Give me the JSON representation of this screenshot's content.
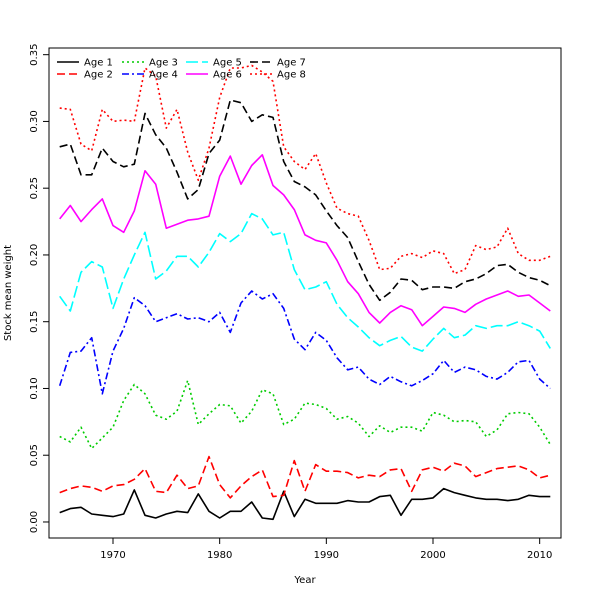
{
  "chart_data": {
    "type": "line",
    "title": "",
    "xlabel": "Year",
    "ylabel": "Stock mean weight",
    "xlim": [
      1964,
      2012
    ],
    "ylim": [
      -0.012,
      0.355
    ],
    "x_ticks": [
      1970,
      1980,
      1990,
      2000,
      2010
    ],
    "y_ticks": [
      0.0,
      0.05,
      0.1,
      0.15,
      0.2,
      0.25,
      0.3,
      0.35
    ],
    "y_tick_labels": [
      "0.00",
      "0.05",
      "0.10",
      "0.15",
      "0.20",
      "0.25",
      "0.30",
      "0.35"
    ],
    "grid": false,
    "legend_position": "top-left",
    "years": [
      1965,
      1966,
      1967,
      1968,
      1969,
      1970,
      1971,
      1972,
      1973,
      1974,
      1975,
      1976,
      1977,
      1978,
      1979,
      1980,
      1981,
      1982,
      1983,
      1984,
      1985,
      1986,
      1987,
      1988,
      1989,
      1990,
      1991,
      1992,
      1993,
      1994,
      1995,
      1996,
      1997,
      1998,
      1999,
      2000,
      2001,
      2002,
      2003,
      2004,
      2005,
      2006,
      2007,
      2008,
      2009,
      2010,
      2011
    ],
    "series": [
      {
        "name": "Age 1",
        "color": "#000000",
        "dash": "solid",
        "values": [
          0.007,
          0.01,
          0.011,
          0.006,
          0.005,
          0.004,
          0.006,
          0.024,
          0.005,
          0.003,
          0.006,
          0.008,
          0.007,
          0.021,
          0.008,
          0.003,
          0.008,
          0.008,
          0.015,
          0.003,
          0.002,
          0.023,
          0.004,
          0.017,
          0.014,
          0.014,
          0.014,
          0.016,
          0.015,
          0.015,
          0.019,
          0.02,
          0.005,
          0.017,
          0.017,
          0.018,
          0.025,
          0.022,
          0.02,
          0.018,
          0.017,
          0.017,
          0.016,
          0.017,
          0.02,
          0.019,
          0.019
        ]
      },
      {
        "name": "Age 2",
        "color": "#ff0000",
        "dash": "dashed",
        "values": [
          0.022,
          0.025,
          0.027,
          0.026,
          0.023,
          0.027,
          0.028,
          0.032,
          0.04,
          0.023,
          0.022,
          0.035,
          0.025,
          0.027,
          0.049,
          0.028,
          0.018,
          0.027,
          0.034,
          0.039,
          0.019,
          0.02,
          0.046,
          0.023,
          0.043,
          0.038,
          0.038,
          0.037,
          0.033,
          0.035,
          0.034,
          0.039,
          0.04,
          0.023,
          0.039,
          0.041,
          0.038,
          0.044,
          0.042,
          0.034,
          0.037,
          0.04,
          0.041,
          0.042,
          0.039,
          0.033,
          0.035
        ]
      },
      {
        "name": "Age 3",
        "color": "#00cc00",
        "dash": "dotted",
        "values": [
          0.064,
          0.06,
          0.071,
          0.055,
          0.063,
          0.071,
          0.091,
          0.103,
          0.096,
          0.08,
          0.077,
          0.083,
          0.106,
          0.073,
          0.081,
          0.088,
          0.087,
          0.074,
          0.083,
          0.099,
          0.096,
          0.073,
          0.077,
          0.089,
          0.088,
          0.085,
          0.077,
          0.079,
          0.074,
          0.064,
          0.072,
          0.067,
          0.071,
          0.071,
          0.068,
          0.082,
          0.08,
          0.075,
          0.076,
          0.075,
          0.064,
          0.069,
          0.081,
          0.082,
          0.081,
          0.071,
          0.058
        ]
      },
      {
        "name": "Age 4",
        "color": "#0000ff",
        "dash": "dashdot",
        "values": [
          0.102,
          0.127,
          0.128,
          0.138,
          0.096,
          0.128,
          0.145,
          0.168,
          0.162,
          0.15,
          0.153,
          0.156,
          0.152,
          0.153,
          0.15,
          0.157,
          0.142,
          0.164,
          0.173,
          0.167,
          0.171,
          0.16,
          0.137,
          0.129,
          0.142,
          0.136,
          0.123,
          0.114,
          0.116,
          0.107,
          0.103,
          0.109,
          0.105,
          0.102,
          0.106,
          0.111,
          0.121,
          0.112,
          0.116,
          0.114,
          0.109,
          0.107,
          0.112,
          0.12,
          0.121,
          0.107,
          0.1
        ]
      },
      {
        "name": "Age 5",
        "color": "#00ffff",
        "dash": "longdash",
        "values": [
          0.169,
          0.158,
          0.187,
          0.195,
          0.191,
          0.16,
          0.182,
          0.2,
          0.217,
          0.182,
          0.188,
          0.199,
          0.199,
          0.191,
          0.202,
          0.216,
          0.21,
          0.216,
          0.231,
          0.227,
          0.215,
          0.217,
          0.189,
          0.174,
          0.176,
          0.18,
          0.163,
          0.153,
          0.146,
          0.138,
          0.132,
          0.136,
          0.139,
          0.131,
          0.128,
          0.137,
          0.145,
          0.138,
          0.14,
          0.147,
          0.145,
          0.147,
          0.147,
          0.15,
          0.147,
          0.143,
          0.13
        ]
      },
      {
        "name": "Age 6",
        "color": "#ff00ff",
        "dash": "solid",
        "values": [
          0.227,
          0.237,
          0.225,
          0.234,
          0.242,
          0.222,
          0.217,
          0.233,
          0.263,
          0.253,
          0.22,
          0.223,
          0.226,
          0.227,
          0.229,
          0.259,
          0.274,
          0.253,
          0.267,
          0.275,
          0.252,
          0.245,
          0.234,
          0.215,
          0.211,
          0.209,
          0.196,
          0.18,
          0.171,
          0.157,
          0.149,
          0.157,
          0.162,
          0.159,
          0.147,
          0.154,
          0.161,
          0.16,
          0.157,
          0.163,
          0.167,
          0.17,
          0.173,
          0.169,
          0.17,
          0.164,
          0.158
        ]
      },
      {
        "name": "Age 7",
        "color": "#000000",
        "dash": "dashed",
        "values": [
          0.281,
          0.283,
          0.26,
          0.26,
          0.28,
          0.27,
          0.266,
          0.268,
          0.306,
          0.29,
          0.28,
          0.262,
          0.242,
          0.249,
          0.276,
          0.286,
          0.316,
          0.314,
          0.3,
          0.305,
          0.303,
          0.27,
          0.255,
          0.251,
          0.245,
          0.233,
          0.222,
          0.213,
          0.195,
          0.178,
          0.166,
          0.172,
          0.182,
          0.181,
          0.174,
          0.176,
          0.176,
          0.175,
          0.18,
          0.182,
          0.186,
          0.192,
          0.193,
          0.187,
          0.183,
          0.181,
          0.177
        ]
      },
      {
        "name": "Age 8",
        "color": "#ff0000",
        "dash": "dotted",
        "values": [
          0.31,
          0.309,
          0.283,
          0.278,
          0.309,
          0.3,
          0.301,
          0.3,
          0.34,
          0.334,
          0.295,
          0.309,
          0.277,
          0.256,
          0.28,
          0.318,
          0.34,
          0.34,
          0.342,
          0.337,
          0.33,
          0.281,
          0.27,
          0.264,
          0.276,
          0.254,
          0.235,
          0.231,
          0.229,
          0.211,
          0.189,
          0.19,
          0.199,
          0.201,
          0.198,
          0.203,
          0.201,
          0.186,
          0.189,
          0.207,
          0.204,
          0.206,
          0.22,
          0.201,
          0.196,
          0.196,
          0.199
        ]
      }
    ]
  }
}
